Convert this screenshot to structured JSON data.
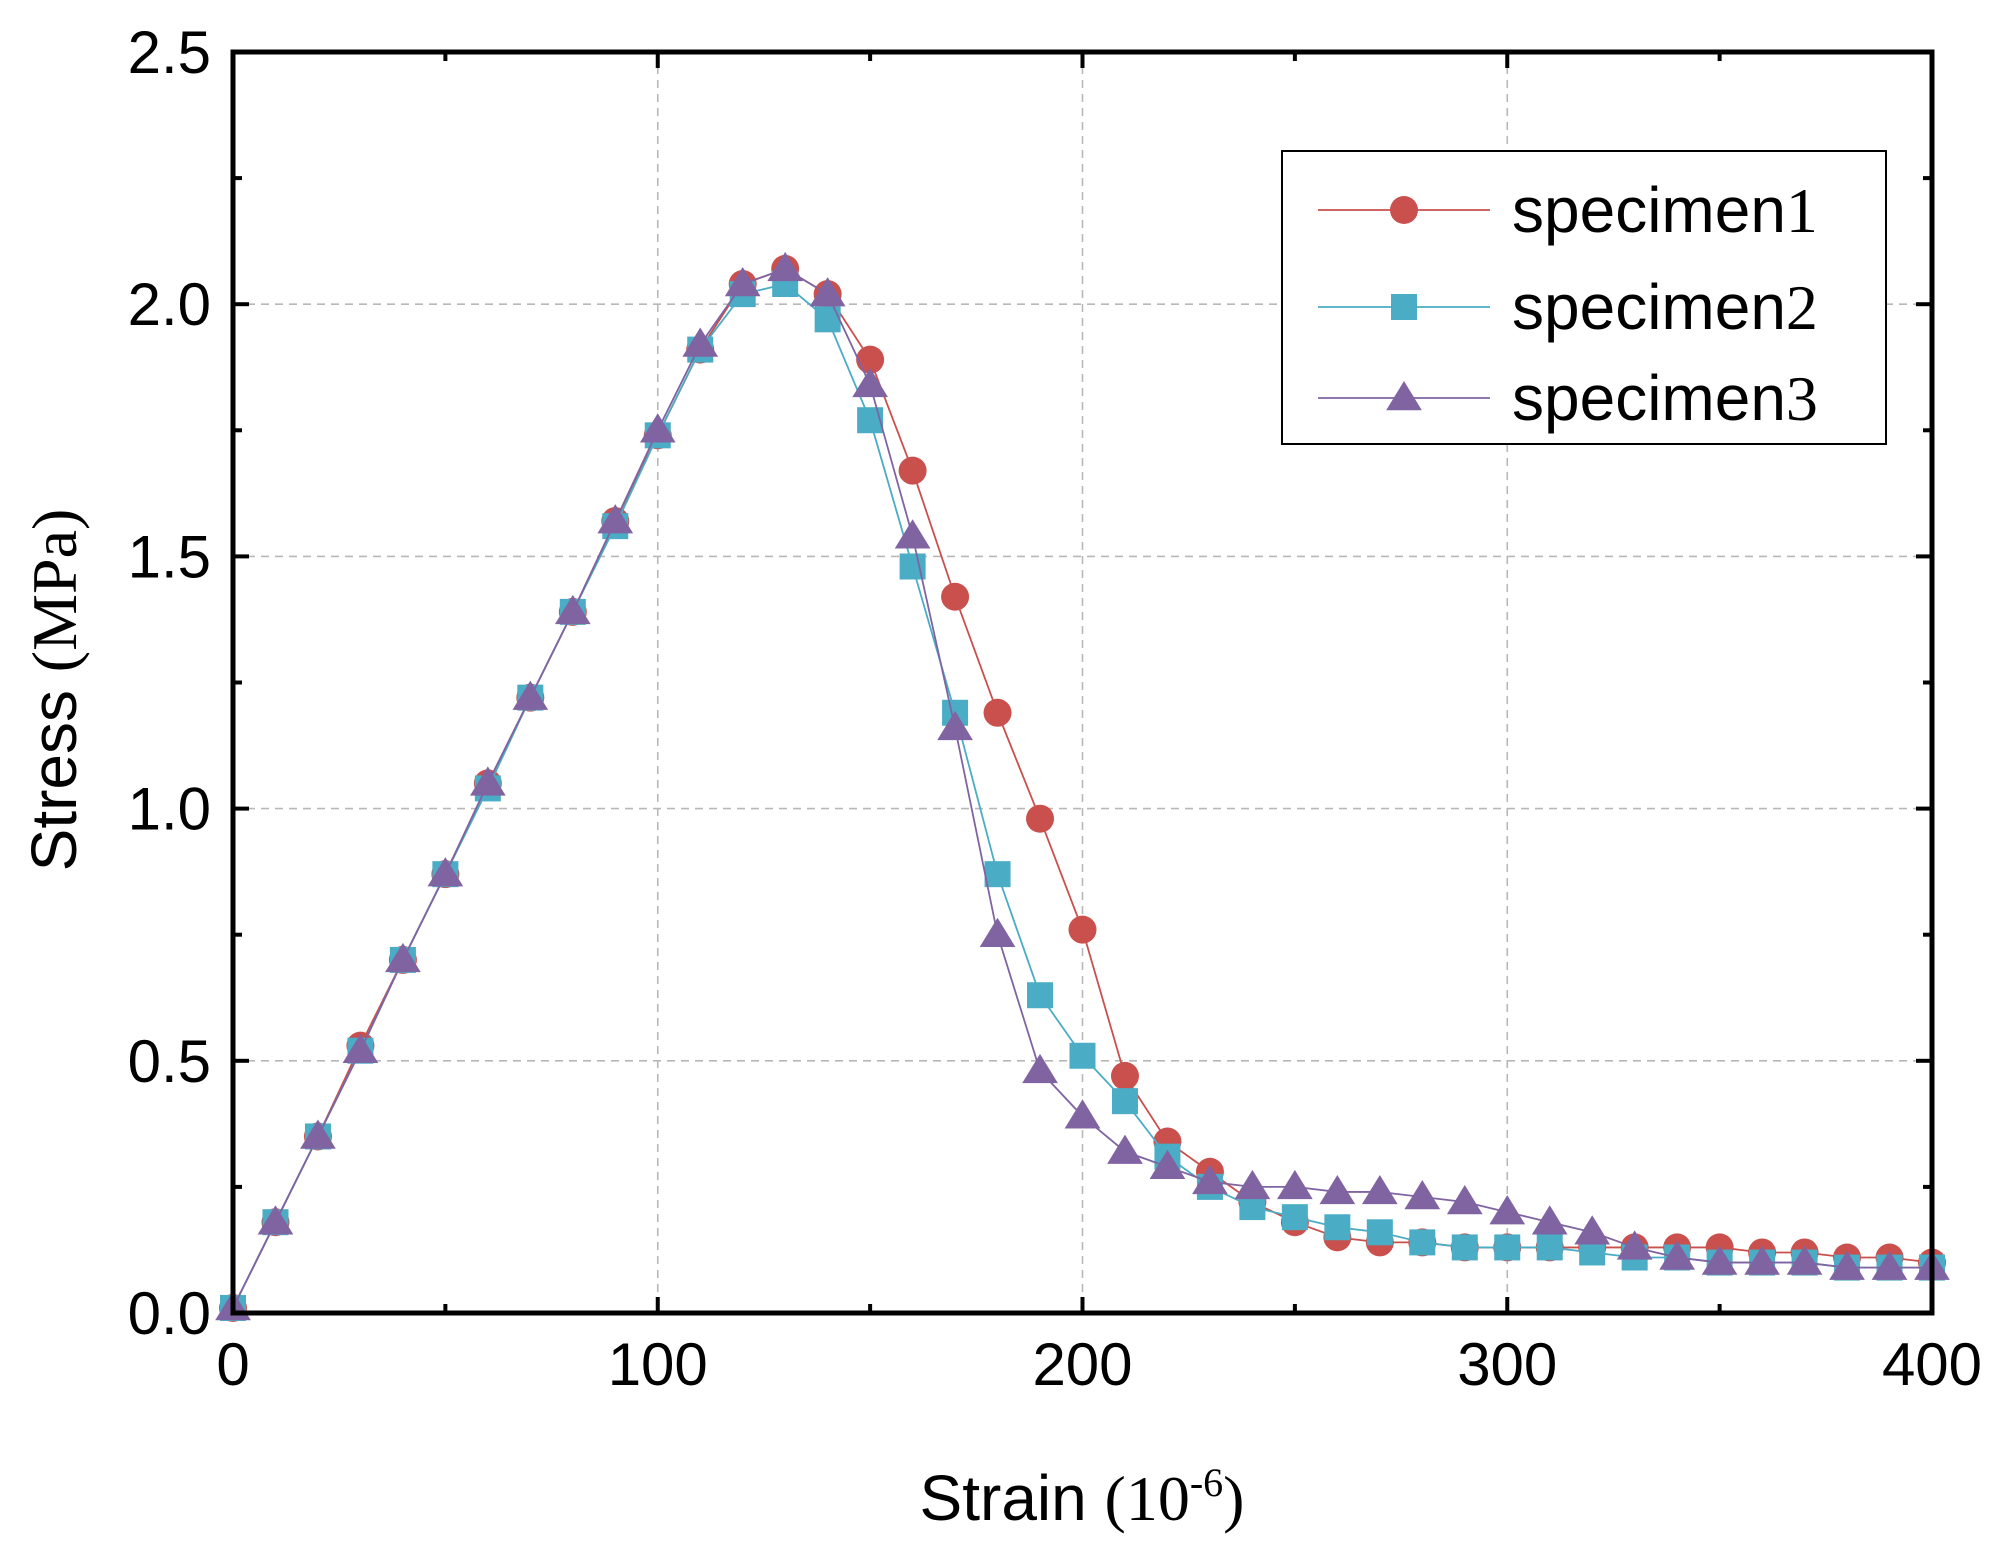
{
  "chart_data": {
    "type": "line",
    "title": "",
    "xlabel": "Strain",
    "xlabel_unit": "(10",
    "xlabel_unit_exp": "-6",
    "xlabel_unit_close": ")",
    "ylabel": "Stress",
    "ylabel_unit": "(MPa)",
    "xlim": [
      0,
      400
    ],
    "ylim": [
      0,
      2.5
    ],
    "xticks": [
      "0",
      "100",
      "200",
      "300",
      "400"
    ],
    "yticks": [
      "0.0",
      "0.5",
      "1.0",
      "1.5",
      "2.0",
      "2.5"
    ],
    "grid": true,
    "legend_position": "top-right",
    "x": [
      0,
      10,
      20,
      30,
      40,
      50,
      60,
      70,
      80,
      90,
      100,
      110,
      120,
      130,
      140,
      150,
      160,
      170,
      180,
      190,
      200,
      210,
      220,
      230,
      240,
      250,
      260,
      270,
      280,
      290,
      300,
      310,
      320,
      330,
      340,
      350,
      360,
      370,
      380,
      390,
      400
    ],
    "series": [
      {
        "name": "specimen1",
        "name_text": "specimen",
        "name_digit": "1",
        "color": "#c9504d",
        "marker": "circle",
        "values": [
          0.01,
          0.18,
          0.35,
          0.53,
          0.7,
          0.87,
          1.05,
          1.22,
          1.39,
          1.57,
          1.74,
          1.91,
          2.04,
          2.07,
          2.02,
          1.89,
          1.67,
          1.42,
          1.19,
          0.98,
          0.76,
          0.47,
          0.34,
          0.28,
          0.22,
          0.18,
          0.15,
          0.14,
          0.14,
          0.13,
          0.13,
          0.13,
          0.13,
          0.13,
          0.13,
          0.13,
          0.12,
          0.12,
          0.11,
          0.11,
          0.1
        ]
      },
      {
        "name": "specimen2",
        "name_text": "specimen",
        "name_digit": "2",
        "color": "#4aacc5",
        "marker": "square",
        "values": [
          0.01,
          0.18,
          0.35,
          0.52,
          0.7,
          0.87,
          1.04,
          1.22,
          1.39,
          1.56,
          1.74,
          1.91,
          2.02,
          2.04,
          1.97,
          1.77,
          1.48,
          1.19,
          0.87,
          0.63,
          0.51,
          0.42,
          0.31,
          0.25,
          0.21,
          0.19,
          0.17,
          0.16,
          0.14,
          0.13,
          0.13,
          0.13,
          0.12,
          0.11,
          0.11,
          0.1,
          0.1,
          0.1,
          0.09,
          0.09,
          0.09
        ]
      },
      {
        "name": "specimen3",
        "name_text": "specimen",
        "name_digit": "3",
        "color": "#8064a2",
        "marker": "triangle",
        "values": [
          0.01,
          0.18,
          0.35,
          0.52,
          0.7,
          0.87,
          1.05,
          1.22,
          1.39,
          1.57,
          1.75,
          1.92,
          2.04,
          2.07,
          2.02,
          1.84,
          1.54,
          1.16,
          0.75,
          0.48,
          0.39,
          0.32,
          0.29,
          0.26,
          0.25,
          0.25,
          0.24,
          0.24,
          0.23,
          0.22,
          0.2,
          0.18,
          0.16,
          0.13,
          0.11,
          0.1,
          0.1,
          0.1,
          0.09,
          0.09,
          0.09
        ]
      }
    ]
  }
}
